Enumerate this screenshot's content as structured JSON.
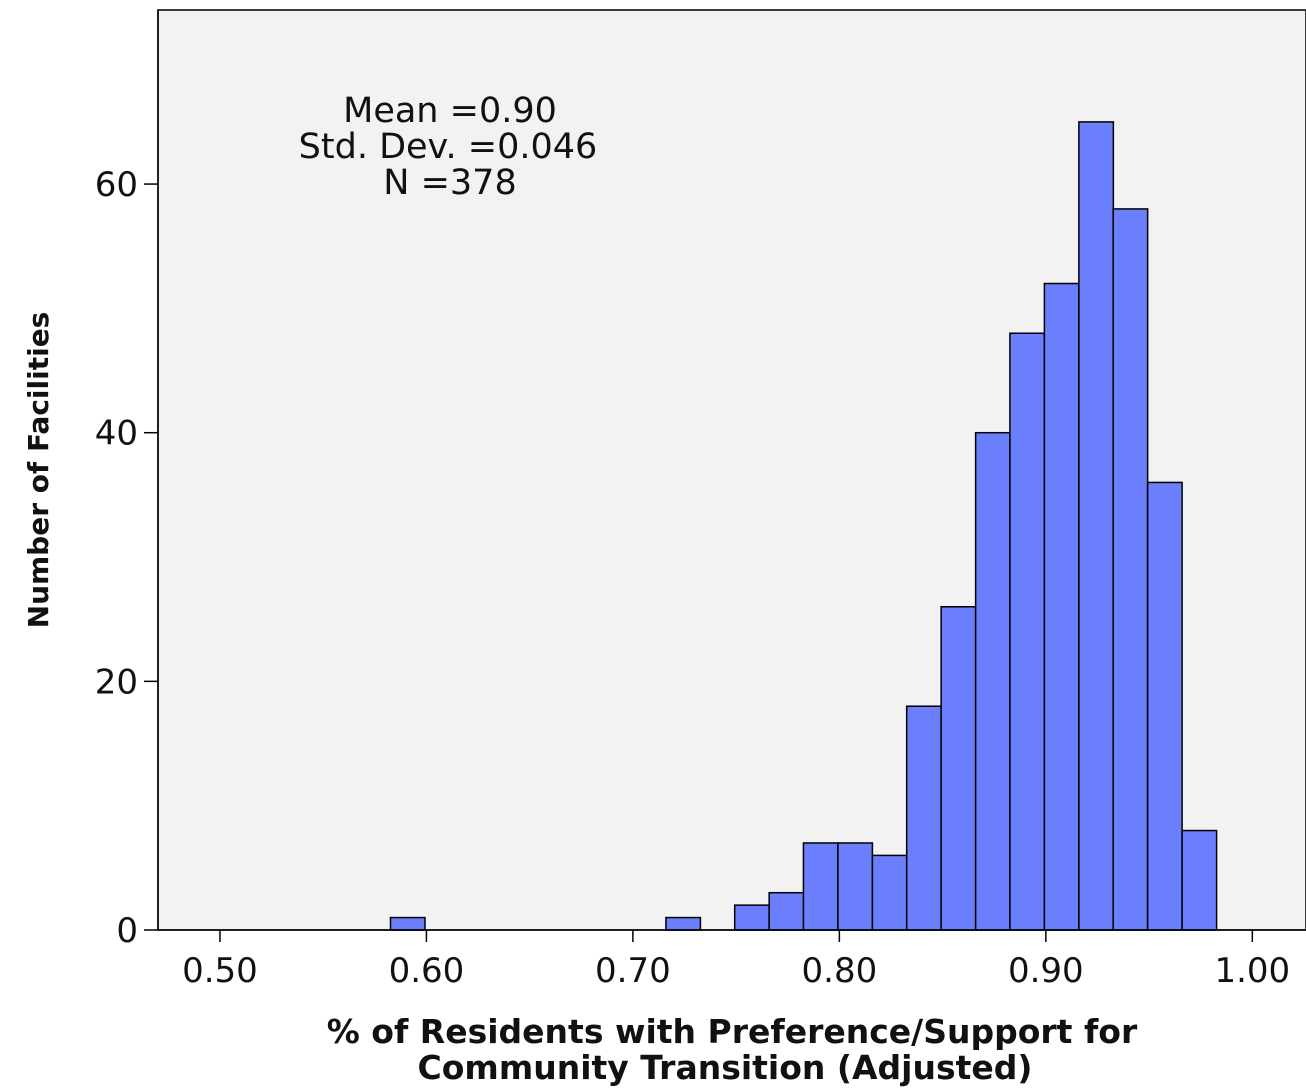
{
  "chart_data": {
    "type": "bar",
    "subtype": "histogram",
    "xlabel_lines": [
      "% of Residents with Preference/Support for",
      "Community Transition (Adjusted)"
    ],
    "ylabel": "Number of Facilities",
    "stats": [
      "Mean =0.90",
      "Std. Dev. =0.046",
      "N =378"
    ],
    "xlim": [
      0.47,
      1.026
    ],
    "ylim": [
      0,
      74
    ],
    "x_ticks": [
      {
        "value": 0.5,
        "label": "0.50"
      },
      {
        "value": 0.6,
        "label": "0.60"
      },
      {
        "value": 0.7,
        "label": "0.70"
      },
      {
        "value": 0.8,
        "label": "0.80"
      },
      {
        "value": 0.9,
        "label": "0.90"
      },
      {
        "value": 1.0,
        "label": "1.00"
      }
    ],
    "y_ticks": [
      {
        "value": 0,
        "label": "0"
      },
      {
        "value": 20,
        "label": "20"
      },
      {
        "value": 40,
        "label": "40"
      },
      {
        "value": 60,
        "label": "60"
      }
    ],
    "bin_width": 0.0167,
    "bins": [
      {
        "start": 0.5826,
        "count": 1
      },
      {
        "start": 0.716,
        "count": 1
      },
      {
        "start": 0.7493,
        "count": 2
      },
      {
        "start": 0.766,
        "count": 3
      },
      {
        "start": 0.7826,
        "count": 7
      },
      {
        "start": 0.7993,
        "count": 7
      },
      {
        "start": 0.816,
        "count": 6
      },
      {
        "start": 0.8326,
        "count": 18
      },
      {
        "start": 0.8493,
        "count": 26
      },
      {
        "start": 0.866,
        "count": 40
      },
      {
        "start": 0.8826,
        "count": 48
      },
      {
        "start": 0.8993,
        "count": 52
      },
      {
        "start": 0.916,
        "count": 65
      },
      {
        "start": 0.9326,
        "count": 58
      },
      {
        "start": 0.9493,
        "count": 36
      },
      {
        "start": 0.966,
        "count": 8
      }
    ],
    "colors": {
      "bar_fill": "#6b7ffc",
      "bar_stroke": "#000000",
      "plot_background": "#f2f2f2"
    },
    "grid": false,
    "legend": "none"
  }
}
